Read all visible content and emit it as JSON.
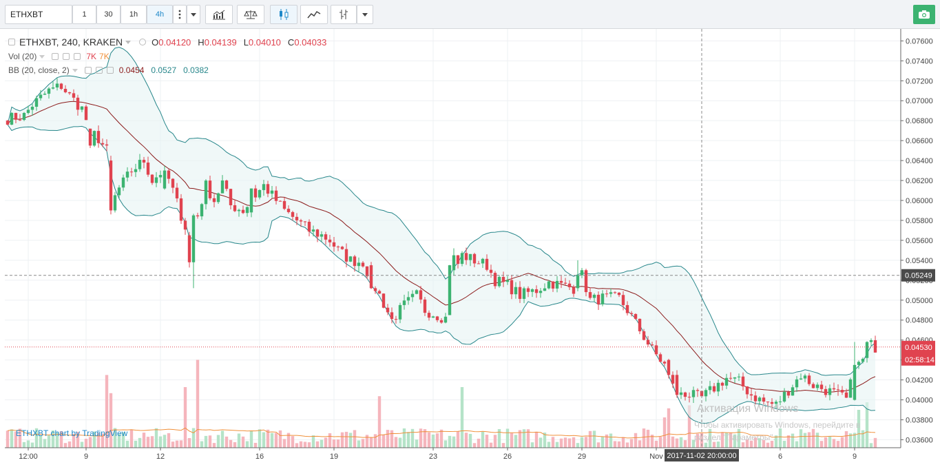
{
  "toolbar": {
    "symbol_value": "ETHXBT",
    "intervals": [
      "1",
      "30",
      "1h",
      "4h"
    ],
    "active_interval": "4h"
  },
  "legend": {
    "symbol": "ETHXBT, 240, KRAKEN",
    "o_label": "O",
    "o_value": "0.04120",
    "h_label": "H",
    "h_value": "0.04139",
    "l_label": "L",
    "l_value": "0.04010",
    "c_label": "C",
    "c_value": "0.04033",
    "vol_label": "Vol (20)",
    "vol_v1": "7K",
    "vol_v2": "7K",
    "bb_label": "BB (20, close, 2)",
    "bb_basis": "0.0454",
    "bb_upper": "0.0527",
    "bb_lower": "0.0382"
  },
  "watermark": {
    "chart_by": "ETHXBT chart by TradingView",
    "activation_title": "Активация Windows",
    "activation_line1": "Чтобы активировать Windows, перейдите в",
    "activation_line2": "раздел \"Параметры\"."
  },
  "colors": {
    "up": "#3cb371",
    "down": "#e0434f",
    "bb": "#26868a",
    "basis": "#8b1a1a",
    "volma": "#f0903a"
  },
  "chart_data": {
    "type": "candlestick",
    "y_ticks": [
      "0.07600",
      "0.07400",
      "0.07200",
      "0.07000",
      "0.06800",
      "0.06600",
      "0.06400",
      "0.06200",
      "0.06000",
      "0.05800",
      "0.05600",
      "0.05400",
      "0.05200",
      "0.05000",
      "0.04800",
      "0.04600",
      "0.04400",
      "0.04200",
      "0.04000",
      "0.03800",
      "0.03600"
    ],
    "x_ticks": [
      {
        "label": "12:00",
        "i": 5
      },
      {
        "label": "9",
        "i": 19
      },
      {
        "label": "12",
        "i": 37
      },
      {
        "label": "16",
        "i": 61
      },
      {
        "label": "19",
        "i": 79
      },
      {
        "label": "23",
        "i": 103
      },
      {
        "label": "26",
        "i": 121
      },
      {
        "label": "29",
        "i": 139
      },
      {
        "label": "Nov",
        "i": 157
      },
      {
        "label": "6",
        "i": 187
      },
      {
        "label": "9",
        "i": 205
      }
    ],
    "crosshair": {
      "date": "2017-11-02 20:00:00",
      "i": 168,
      "price": "0.05249",
      "price_value": 0.05249
    },
    "last_price": {
      "label": "0.04530",
      "value": 0.0453,
      "countdown": "02:58:14"
    },
    "y_range": [
      0.0352,
      0.0772
    ],
    "anchors": [
      [
        0,
        0.0682
      ],
      [
        4,
        0.0685
      ],
      [
        6,
        0.0696
      ],
      [
        10,
        0.071
      ],
      [
        13,
        0.0715
      ],
      [
        15,
        0.0705
      ],
      [
        18,
        0.0692
      ],
      [
        20,
        0.067
      ],
      [
        22,
        0.0662
      ],
      [
        24,
        0.065
      ],
      [
        25,
        0.0595
      ],
      [
        27,
        0.0612
      ],
      [
        30,
        0.063
      ],
      [
        33,
        0.064
      ],
      [
        35,
        0.062
      ],
      [
        38,
        0.0632
      ],
      [
        40,
        0.061
      ],
      [
        42,
        0.0585
      ],
      [
        44,
        0.0562
      ],
      [
        45,
        0.0535
      ],
      [
        46,
        0.0585
      ],
      [
        48,
        0.0615
      ],
      [
        50,
        0.06
      ],
      [
        52,
        0.0618
      ],
      [
        54,
        0.0595
      ],
      [
        57,
        0.059
      ],
      [
        60,
        0.0605
      ],
      [
        62,
        0.0615
      ],
      [
        64,
        0.0605
      ],
      [
        67,
        0.059
      ],
      [
        70,
        0.058
      ],
      [
        73,
        0.057
      ],
      [
        76,
        0.0565
      ],
      [
        78,
        0.056
      ],
      [
        80,
        0.055
      ],
      [
        83,
        0.054
      ],
      [
        86,
        0.0538
      ],
      [
        88,
        0.052
      ],
      [
        90,
        0.0505
      ],
      [
        93,
        0.048
      ],
      [
        96,
        0.0495
      ],
      [
        99,
        0.0505
      ],
      [
        101,
        0.049
      ],
      [
        104,
        0.0485
      ],
      [
        106,
        0.0482
      ],
      [
        108,
        0.0528
      ],
      [
        110,
        0.0545
      ],
      [
        113,
        0.054
      ],
      [
        116,
        0.0535
      ],
      [
        118,
        0.052
      ],
      [
        121,
        0.0515
      ],
      [
        124,
        0.0505
      ],
      [
        128,
        0.051
      ],
      [
        131,
        0.0518
      ],
      [
        134,
        0.0515
      ],
      [
        137,
        0.0512
      ],
      [
        139,
        0.0525
      ],
      [
        141,
        0.05
      ],
      [
        144,
        0.0502
      ],
      [
        148,
        0.0502
      ],
      [
        150,
        0.049
      ],
      [
        153,
        0.047
      ],
      [
        156,
        0.045
      ],
      [
        159,
        0.0435
      ],
      [
        162,
        0.041
      ],
      [
        165,
        0.0405
      ],
      [
        168,
        0.0402
      ],
      [
        171,
        0.0412
      ],
      [
        174,
        0.0422
      ],
      [
        177,
        0.0418
      ],
      [
        180,
        0.0405
      ],
      [
        183,
        0.0398
      ],
      [
        186,
        0.0395
      ],
      [
        189,
        0.041
      ],
      [
        192,
        0.0425
      ],
      [
        195,
        0.0415
      ],
      [
        198,
        0.041
      ],
      [
        201,
        0.0405
      ],
      [
        203,
        0.04
      ],
      [
        205,
        0.043
      ],
      [
        207,
        0.044
      ],
      [
        209,
        0.0455
      ],
      [
        210,
        0.0453
      ]
    ],
    "big_moves": [
      [
        20,
        0.0672,
        0.0655
      ],
      [
        25,
        0.064,
        0.059
      ],
      [
        38,
        0.0612,
        0.063
      ],
      [
        44,
        0.0565,
        0.0538
      ],
      [
        45,
        0.0538,
        0.0585
      ],
      [
        59,
        0.0588,
        0.0612
      ],
      [
        88,
        0.0535,
        0.0512
      ],
      [
        107,
        0.0485,
        0.0535
      ],
      [
        108,
        0.053,
        0.0545
      ],
      [
        138,
        0.0512,
        0.0525
      ],
      [
        160,
        0.044,
        0.0425
      ],
      [
        162,
        0.0425,
        0.0405
      ],
      [
        205,
        0.04,
        0.0435
      ],
      [
        208,
        0.0442,
        0.0458
      ]
    ],
    "volume_spikes": [
      [
        24,
        4.8
      ],
      [
        25,
        3.6
      ],
      [
        43,
        4.0
      ],
      [
        46,
        5.8
      ],
      [
        90,
        3.4
      ],
      [
        110,
        4.0
      ],
      [
        159,
        2.0
      ],
      [
        160,
        2.6
      ],
      [
        165,
        2.8
      ],
      [
        206,
        2.5
      ],
      [
        208,
        3.0
      ]
    ]
  }
}
